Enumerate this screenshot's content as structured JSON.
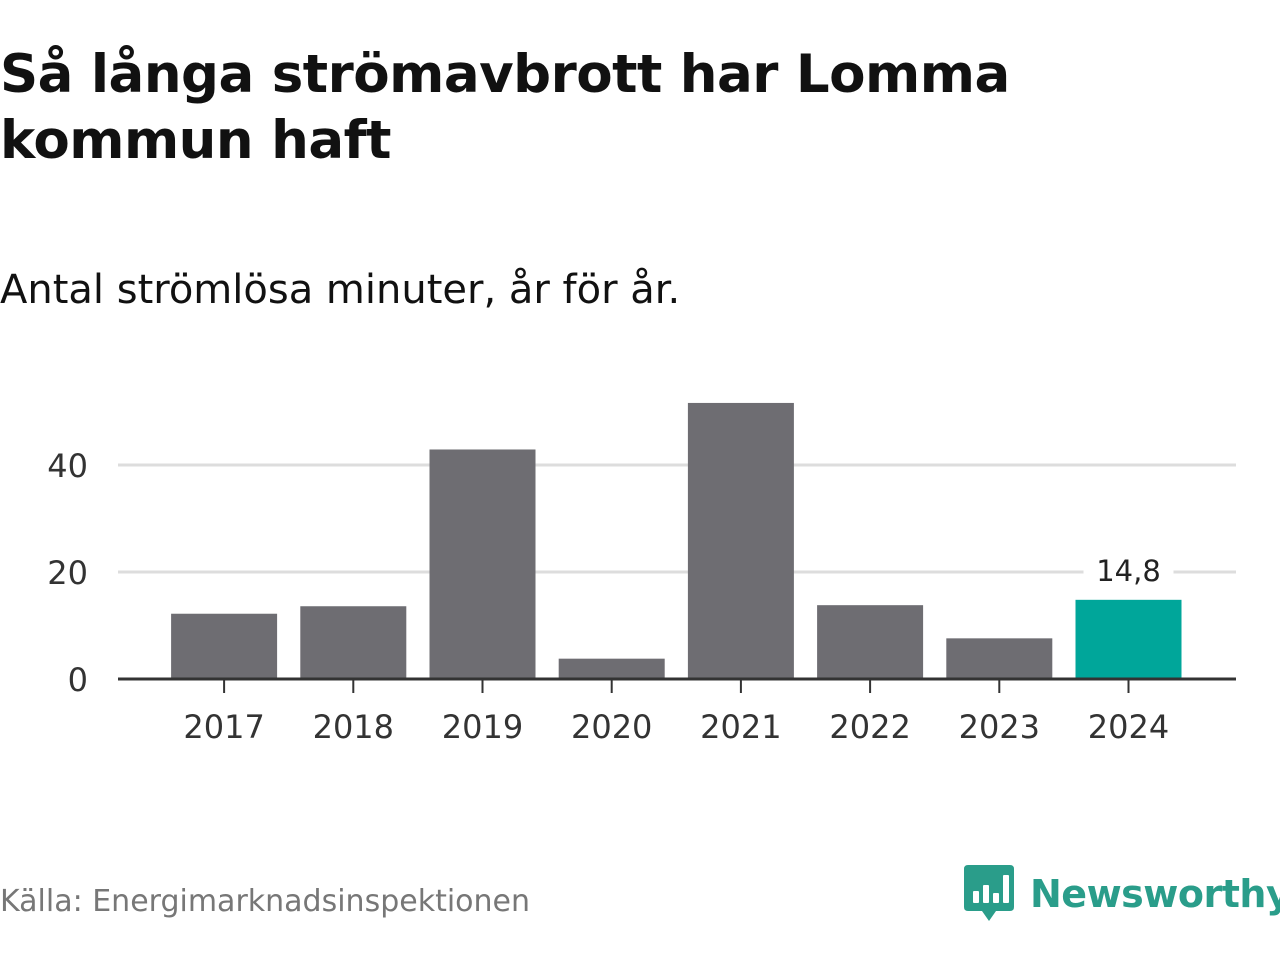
{
  "header": {
    "title": "Så långa strömavbrott har Lomma kommun haft",
    "subtitle": "Antal strömlösa minuter, år för år."
  },
  "footer": {
    "source": "Källa: Energimarknadsinspektionen",
    "brand": "Newsworthy",
    "brand_icon": "newsworthy-logo-icon"
  },
  "colors": {
    "bar": "#6e6d72",
    "highlight": "#00a69a",
    "grid": "#dddddd",
    "axis": "#333333",
    "brand": "#2a9d8a"
  },
  "chart_data": {
    "type": "bar",
    "title": "Så långa strömavbrott har Lomma kommun haft",
    "subtitle": "Antal strömlösa minuter, år för år.",
    "xlabel": "",
    "ylabel": "",
    "categories": [
      "2017",
      "2018",
      "2019",
      "2020",
      "2021",
      "2022",
      "2023",
      "2024"
    ],
    "values": [
      12.2,
      13.6,
      42.9,
      3.8,
      51.6,
      13.8,
      7.6,
      14.8
    ],
    "highlight_index": 7,
    "data_labels": [
      {
        "index": 7,
        "text": "14,8"
      }
    ],
    "ylim": [
      0,
      56
    ],
    "yticks": [
      0,
      20,
      40
    ],
    "grid": true,
    "legend": "none"
  }
}
